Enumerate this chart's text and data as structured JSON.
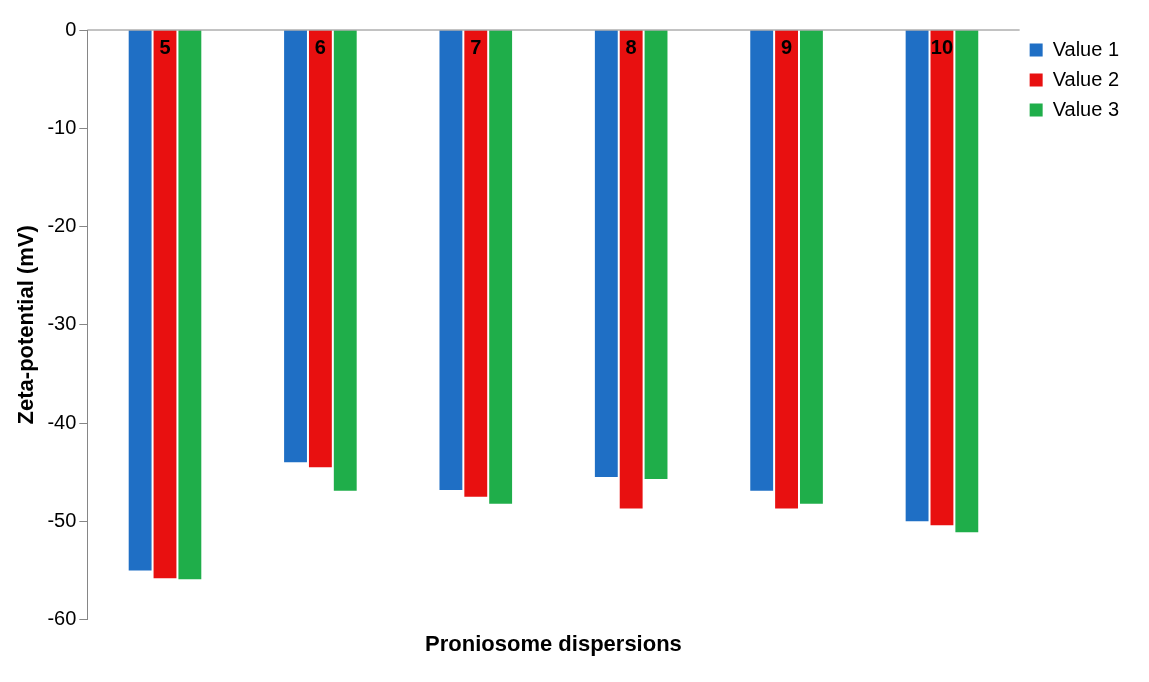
{
  "chart_data": {
    "type": "bar",
    "xlabel": "Proniosome dispersions",
    "ylabel": "Zeta-potential (mV)",
    "categories": [
      "5",
      "6",
      "7",
      "8",
      "9",
      "10"
    ],
    "series": [
      {
        "name": "Value 1",
        "color": "#1f6fc5",
        "values": [
          -55.0,
          -44.0,
          -46.8,
          -45.5,
          -46.9,
          -50.0
        ]
      },
      {
        "name": "Value 2",
        "color": "#e81010",
        "values": [
          -55.8,
          -44.5,
          -47.5,
          -48.7,
          -48.7,
          -50.4
        ]
      },
      {
        "name": "Value 3",
        "color": "#1fae4a",
        "values": [
          -55.9,
          -46.9,
          -48.2,
          -45.7,
          -48.2,
          -51.1
        ]
      }
    ],
    "ylim": [
      -60,
      0
    ],
    "yticks": [
      -60,
      -50,
      -40,
      -30,
      -20,
      -10,
      0
    ],
    "grid": false,
    "legend": "top right"
  }
}
